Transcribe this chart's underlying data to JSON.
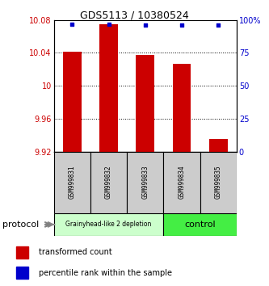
{
  "title": "GDS5113 / 10380524",
  "samples": [
    "GSM999831",
    "GSM999832",
    "GSM999833",
    "GSM999834",
    "GSM999835"
  ],
  "bar_values": [
    10.041,
    10.075,
    10.038,
    10.027,
    9.935
  ],
  "bar_bottom": 9.92,
  "percentile_values": [
    97,
    97,
    96,
    96,
    96
  ],
  "ylim_left": [
    9.92,
    10.08
  ],
  "ylim_right": [
    0,
    100
  ],
  "yticks_left": [
    9.92,
    9.96,
    10.0,
    10.04,
    10.08
  ],
  "yticks_right": [
    0,
    25,
    50,
    75,
    100
  ],
  "ytick_labels_left": [
    "9.92",
    "9.96",
    "10",
    "10.04",
    "10.08"
  ],
  "ytick_labels_right": [
    "0",
    "25",
    "50",
    "75",
    "100%"
  ],
  "bar_color": "#cc0000",
  "dot_color": "#0000cc",
  "group1_label": "Grainyhead-like 2 depletion",
  "group2_label": "control",
  "group1_color": "#ccffcc",
  "group2_color": "#44ee44",
  "group1_indices": [
    0,
    1,
    2
  ],
  "group2_indices": [
    3,
    4
  ],
  "protocol_label": "protocol",
  "legend_bar_label": "transformed count",
  "legend_dot_label": "percentile rank within the sample",
  "background_color": "#ffffff",
  "tick_label_color_left": "#cc0000",
  "tick_label_color_right": "#0000cc",
  "figsize": [
    3.33,
    3.54
  ],
  "dpi": 100
}
